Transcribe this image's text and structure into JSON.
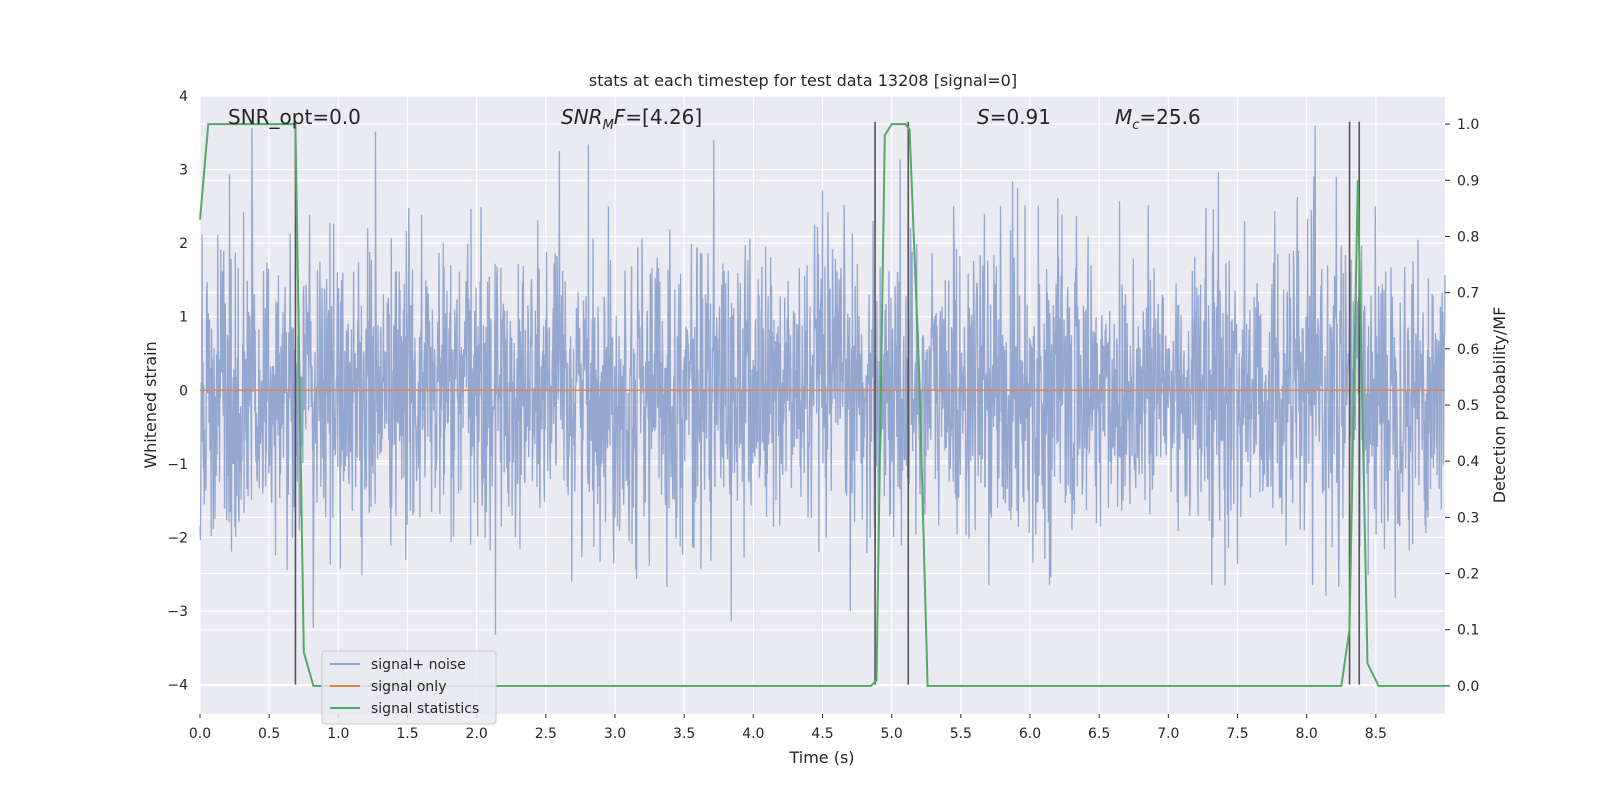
{
  "chart_data": {
    "type": "line",
    "title": "stats at each timestep for test data 13208 [signal=0]",
    "xlabel": "Time (s)",
    "ylabel": "Whitened strain",
    "y2label": "Detection probability/MF",
    "xlim": [
      0.0,
      9.0
    ],
    "ylim": [
      -4.4,
      4.0
    ],
    "y2lim": [
      -0.05,
      1.05
    ],
    "xticks": [
      0.0,
      0.5,
      1.0,
      1.5,
      2.0,
      2.5,
      3.0,
      3.5,
      4.0,
      4.5,
      5.0,
      5.5,
      6.0,
      6.5,
      7.0,
      7.5,
      8.0,
      8.5
    ],
    "yticks": [
      4,
      3,
      2,
      1,
      0,
      -1,
      -2,
      -3,
      -4
    ],
    "y2ticks": [
      1.0,
      0.9,
      0.8,
      0.7,
      0.6,
      0.5,
      0.4,
      0.3,
      0.2,
      0.1,
      0.0
    ],
    "grid": true,
    "legend_position": "lower-left",
    "annotations": {
      "snr_opt": "SNR_opt=0.0",
      "snr_mf": "=[4.26]",
      "s_value": "=0.91",
      "mc_value": "=25.6"
    },
    "colors": {
      "noise": "#8fa3cc",
      "signal": "#dd8452",
      "stat": "#55a868",
      "vline": "#555555",
      "grid_bg": "#eaeaf2"
    },
    "series": [
      {
        "name": "signal+ noise",
        "kind": "noise",
        "amplitude_typical": 2.0,
        "amplitude_peak": 3.6
      },
      {
        "name": "signal only",
        "kind": "flat",
        "value": 0.0
      },
      {
        "name": "signal statistics",
        "axis": "right",
        "x": [
          0.0,
          0.06,
          0.12,
          0.25,
          0.4,
          0.55,
          0.69,
          0.75,
          0.82,
          1.0,
          2.0,
          3.0,
          4.0,
          4.85,
          4.89,
          4.95,
          5.0,
          5.1,
          5.13,
          5.2,
          5.26,
          5.5,
          6.0,
          7.0,
          8.0,
          8.25,
          8.31,
          8.37,
          8.44,
          8.52,
          8.6,
          9.0
        ],
        "values": [
          0.83,
          1.0,
          1.0,
          1.0,
          1.0,
          1.0,
          1.0,
          0.06,
          0.0,
          0.0,
          0.0,
          0.0,
          0.0,
          0.0,
          0.01,
          0.98,
          1.0,
          1.0,
          0.99,
          0.55,
          0.0,
          0.0,
          0.0,
          0.0,
          0.0,
          0.0,
          0.1,
          0.9,
          0.04,
          0.0,
          0.0,
          0.0
        ]
      }
    ],
    "vlines": [
      {
        "x": 0.69,
        "y_from": -4.0,
        "y_to": 3.65
      },
      {
        "x": 4.88,
        "y_from": -4.0,
        "y_to": 3.65
      },
      {
        "x": 5.12,
        "y_from": -4.0,
        "y_to": 3.65
      },
      {
        "x": 8.31,
        "y_from": -4.0,
        "y_to": 3.65
      },
      {
        "x": 8.38,
        "y_from": -4.0,
        "y_to": 3.65
      }
    ]
  }
}
